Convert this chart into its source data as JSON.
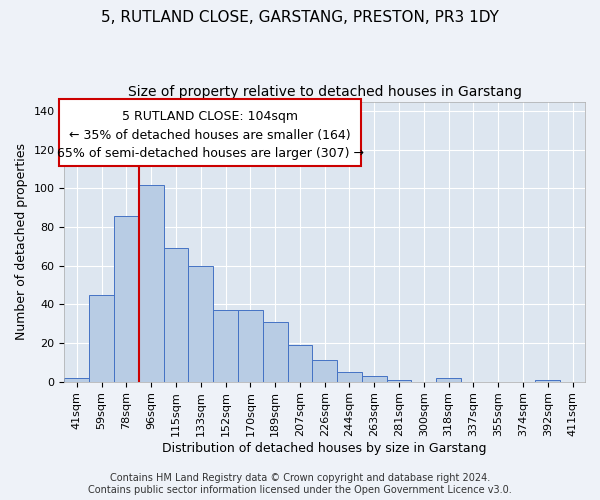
{
  "title": "5, RUTLAND CLOSE, GARSTANG, PRESTON, PR3 1DY",
  "subtitle": "Size of property relative to detached houses in Garstang",
  "xlabel": "Distribution of detached houses by size in Garstang",
  "ylabel": "Number of detached properties",
  "categories": [
    "41sqm",
    "59sqm",
    "78sqm",
    "96sqm",
    "115sqm",
    "133sqm",
    "152sqm",
    "170sqm",
    "189sqm",
    "207sqm",
    "226sqm",
    "244sqm",
    "263sqm",
    "281sqm",
    "300sqm",
    "318sqm",
    "337sqm",
    "355sqm",
    "374sqm",
    "392sqm",
    "411sqm"
  ],
  "values": [
    2,
    45,
    86,
    102,
    69,
    60,
    37,
    37,
    31,
    19,
    11,
    5,
    3,
    1,
    0,
    2,
    0,
    0,
    0,
    1,
    0
  ],
  "bar_color": "#b8cce4",
  "bar_edge_color": "#4472c4",
  "vline_position": 2.5,
  "vline_color": "#cc0000",
  "annotation_line1": "5 RUTLAND CLOSE: 104sqm",
  "annotation_line2": "← 35% of detached houses are smaller (164)",
  "annotation_line3": "65% of semi-detached houses are larger (307) →",
  "annotation_box_color": "#ffffff",
  "annotation_box_edge_color": "#cc0000",
  "ylim": [
    0,
    145
  ],
  "yticks": [
    0,
    20,
    40,
    60,
    80,
    100,
    120,
    140
  ],
  "footer": "Contains HM Land Registry data © Crown copyright and database right 2024.\nContains public sector information licensed under the Open Government Licence v3.0.",
  "title_fontsize": 11,
  "subtitle_fontsize": 10,
  "xlabel_fontsize": 9,
  "ylabel_fontsize": 9,
  "tick_fontsize": 8,
  "annotation_fontsize": 9,
  "footer_fontsize": 7,
  "background_color": "#eef2f8",
  "plot_background_color": "#dde6f0"
}
